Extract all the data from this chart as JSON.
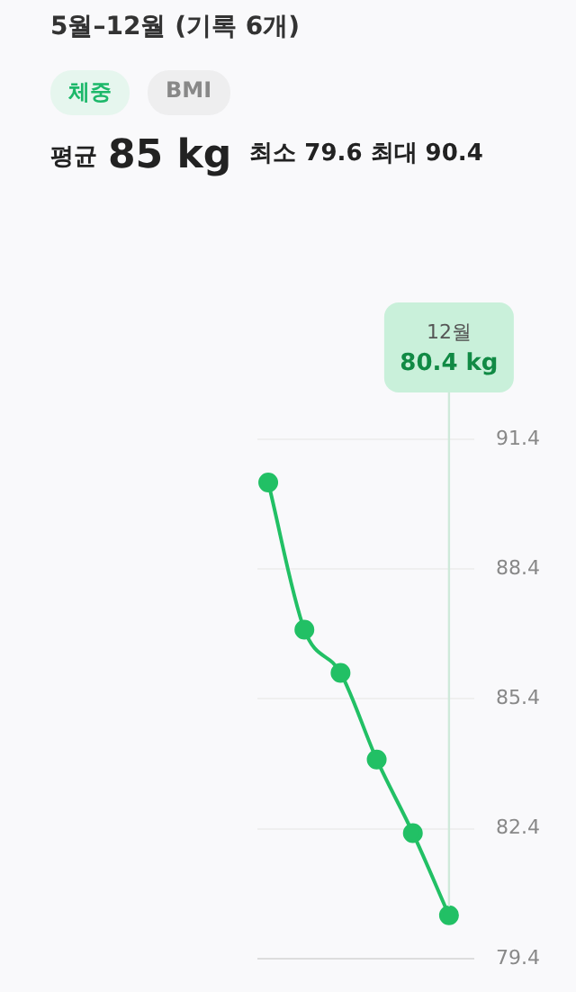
{
  "chart_data": {
    "type": "line",
    "title": "5월–12월 (기록 6개)",
    "annotations": [
      "체중",
      "BMI",
      "평균",
      "85 kg",
      "최소 79.6 최대 90.4",
      "12월",
      "80.4 kg"
    ],
    "categories": [
      null,
      null,
      null,
      null,
      null,
      null
    ],
    "series": [
      {
        "color": "#22c065",
        "values": [
          90.4,
          87.0,
          86.0,
          84.0,
          82.3,
          80.4
        ]
      }
    ],
    "ylim": [
      79.4,
      91.4
    ],
    "yticks": [
      79.4,
      82.4,
      85.4,
      88.4,
      91.4
    ],
    "grid": "y",
    "legend": false,
    "tick_labels": "y",
    "marker": "circle",
    "line_style": "solid"
  }
}
